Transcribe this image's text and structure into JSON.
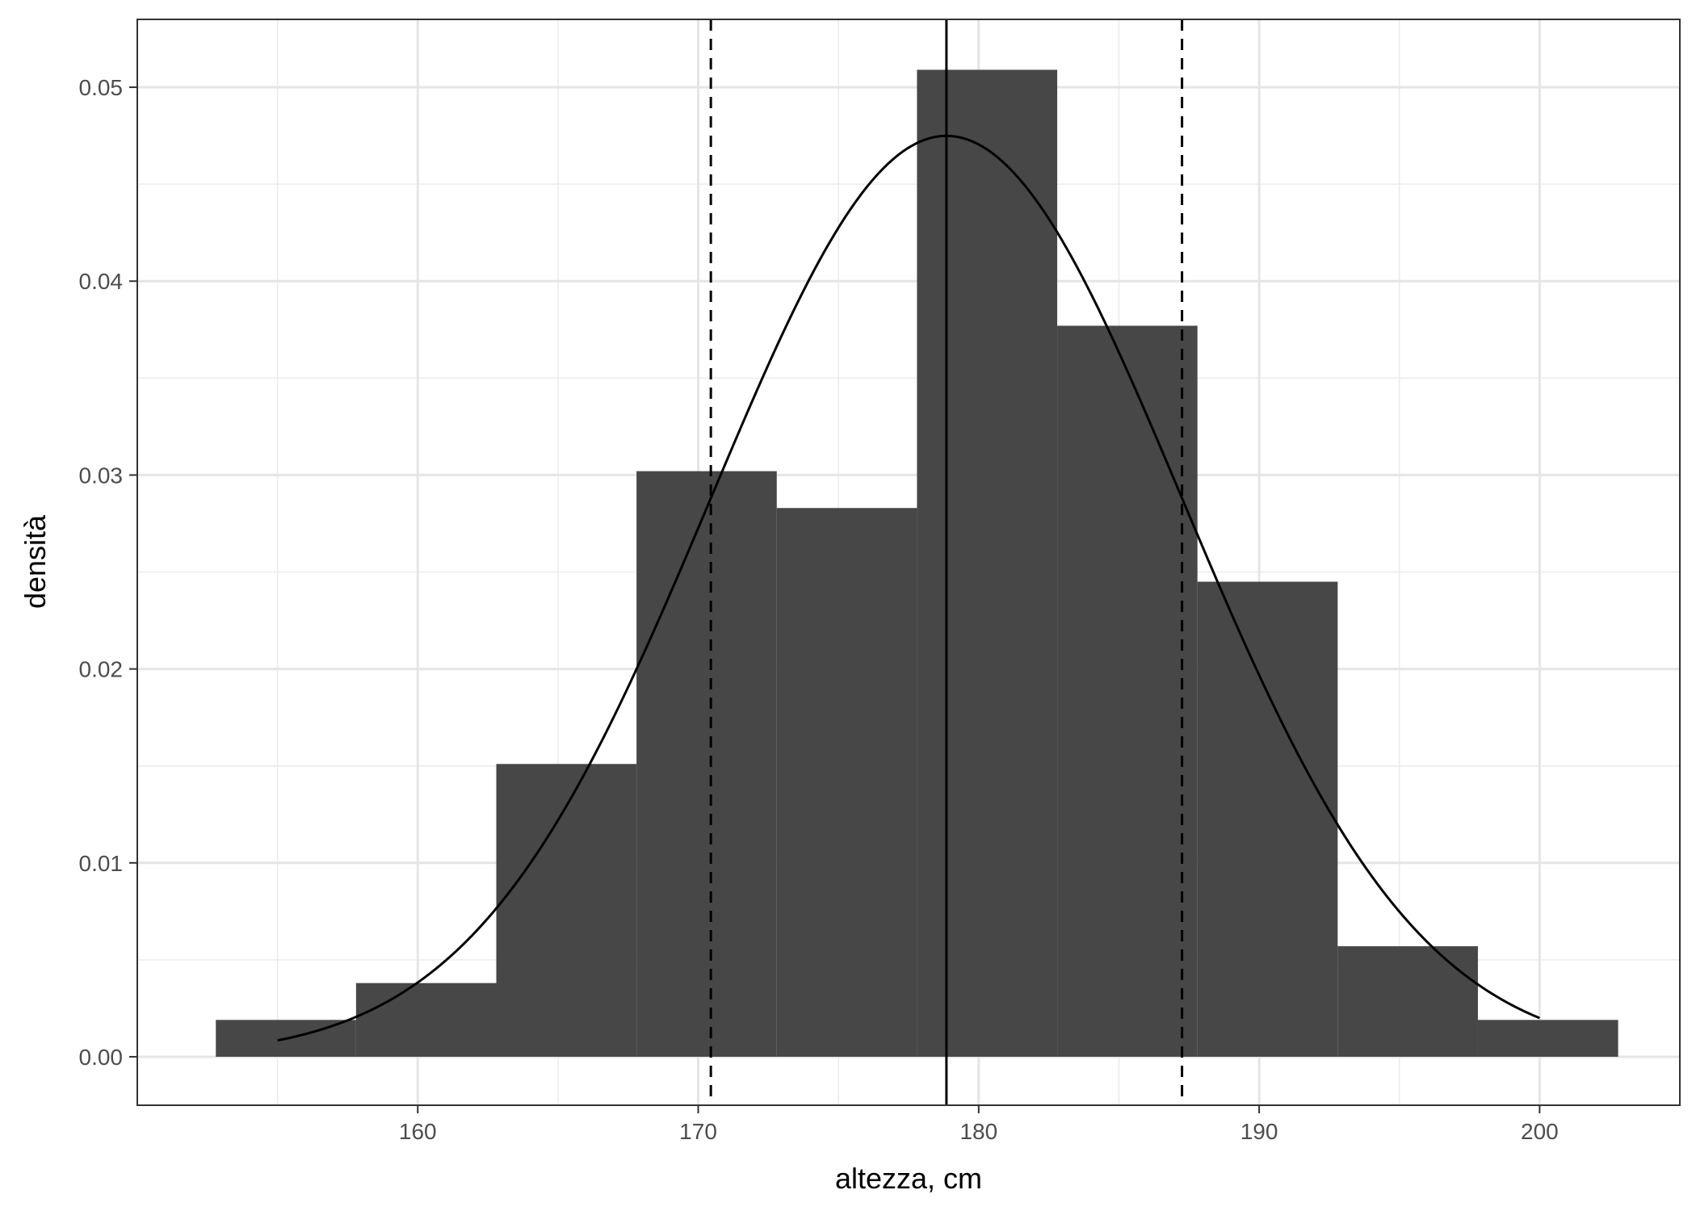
{
  "chart_data": {
    "type": "bar",
    "xlabel": "altezza, cm",
    "ylabel": "densità",
    "xlim": [
      150,
      205
    ],
    "ylim": [
      -0.0025,
      0.0535
    ],
    "x_ticks": [
      160,
      170,
      180,
      190,
      200
    ],
    "x_tick_labels": [
      "160",
      "170",
      "180",
      "190",
      "200"
    ],
    "x_minor_ticks": [
      155,
      165,
      175,
      185,
      195
    ],
    "y_ticks": [
      0,
      0.01,
      0.02,
      0.03,
      0.04,
      0.05
    ],
    "y_tick_labels": [
      "0.00",
      "0.01",
      "0.02",
      "0.03",
      "0.04",
      "0.05"
    ],
    "y_minor_ticks": [
      0.005,
      0.015,
      0.025,
      0.035,
      0.045
    ],
    "grid": true,
    "histogram": {
      "bin_edges": [
        152.8,
        157.8,
        162.8,
        167.8,
        172.8,
        177.8,
        182.8,
        187.8,
        192.8,
        197.8,
        202.8
      ],
      "values": [
        0.0019,
        0.0038,
        0.0151,
        0.0302,
        0.0283,
        0.0509,
        0.0377,
        0.0245,
        0.0057,
        0.0019
      ],
      "color": "#474747"
    },
    "normal_curve": {
      "mean": 178.85,
      "sd": 8.4,
      "x_range": [
        155,
        200
      ],
      "color": "#000000"
    },
    "mean_line": {
      "x": 178.85,
      "style": "solid",
      "color": "#000000"
    },
    "sd_lines": {
      "x": [
        170.45,
        187.25
      ],
      "style": "dashed",
      "color": "#000000"
    }
  }
}
